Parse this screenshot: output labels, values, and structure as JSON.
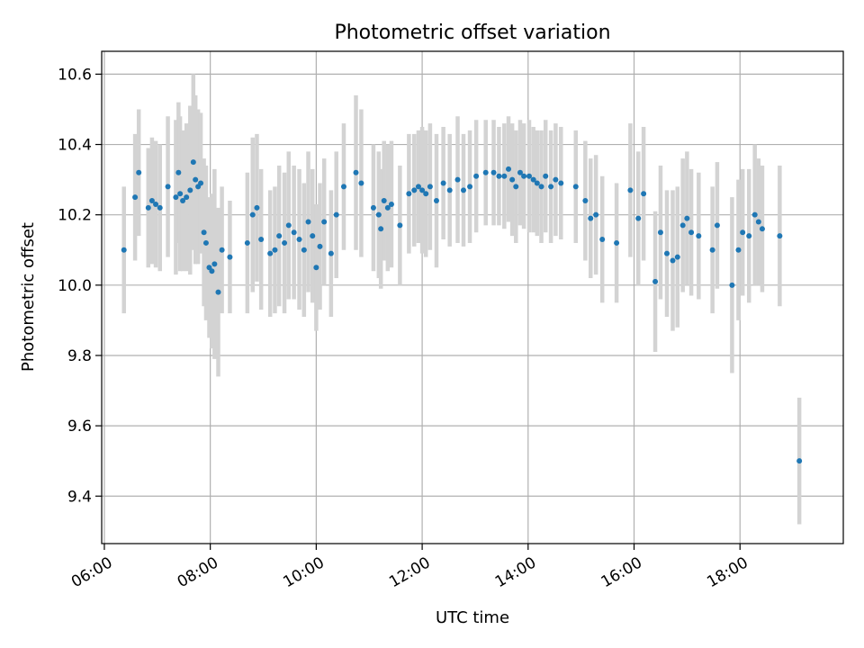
{
  "chart_data": {
    "type": "scatter",
    "title": "Photometric offset variation",
    "xlabel": "UTC time",
    "ylabel": "Photometric offset",
    "xlim": [
      5.95,
      19.95
    ],
    "ylim": [
      9.265,
      10.665
    ],
    "xticks": [
      6,
      8,
      10,
      12,
      14,
      16,
      18
    ],
    "xtick_labels": [
      "06:00",
      "08:00",
      "10:00",
      "12:00",
      "14:00",
      "16:00",
      "18:00"
    ],
    "yticks": [
      9.4,
      9.6,
      9.8,
      10.0,
      10.2,
      10.4,
      10.6
    ],
    "ytick_labels": [
      "9.4",
      "9.6",
      "9.8",
      "10.0",
      "10.2",
      "10.4",
      "10.6"
    ],
    "grid": true,
    "colors": {
      "points": "#1f77b4",
      "errorbars": "#d3d3d3",
      "grid": "#b0b0b0"
    },
    "series": [
      {
        "x": [
          6.37,
          6.58,
          6.65,
          6.83,
          6.9,
          6.97,
          7.05,
          7.2,
          7.35,
          7.4,
          7.43,
          7.48,
          7.55,
          7.62,
          7.68,
          7.72,
          7.77,
          7.82,
          7.88,
          7.92,
          7.98,
          8.03,
          8.08,
          8.15,
          8.22,
          8.37,
          8.7,
          8.8,
          8.88,
          8.96,
          9.13,
          9.22,
          9.3,
          9.4,
          9.48,
          9.58,
          9.68,
          9.77,
          9.85,
          9.93,
          10.0,
          10.07,
          10.15,
          10.28,
          10.38,
          10.52,
          10.75,
          10.85,
          11.08,
          11.18,
          11.22,
          11.28,
          11.35,
          11.42,
          11.58,
          11.75,
          11.85,
          11.93,
          12.0,
          12.07,
          12.15,
          12.27,
          12.4,
          12.52,
          12.67,
          12.78,
          12.9,
          13.02,
          13.2,
          13.35,
          13.45,
          13.55,
          13.63,
          13.7,
          13.77,
          13.85,
          13.92,
          14.02,
          14.1,
          14.17,
          14.25,
          14.33,
          14.43,
          14.52,
          14.62,
          14.9,
          15.08,
          15.18,
          15.28,
          15.4,
          15.67,
          15.93,
          16.08,
          16.18,
          16.4,
          16.5,
          16.62,
          16.73,
          16.82,
          16.92,
          17.0,
          17.08,
          17.22,
          17.48,
          17.57,
          17.85,
          17.97,
          18.05,
          18.17,
          18.28,
          18.35,
          18.42,
          18.75,
          19.12
        ],
        "y": [
          10.1,
          10.25,
          10.32,
          10.22,
          10.24,
          10.23,
          10.22,
          10.28,
          10.25,
          10.32,
          10.26,
          10.24,
          10.25,
          10.27,
          10.35,
          10.3,
          10.28,
          10.29,
          10.15,
          10.12,
          10.05,
          10.04,
          10.06,
          9.98,
          10.1,
          10.08,
          10.12,
          10.2,
          10.22,
          10.13,
          10.09,
          10.1,
          10.14,
          10.12,
          10.17,
          10.15,
          10.13,
          10.1,
          10.18,
          10.14,
          10.05,
          10.11,
          10.18,
          10.09,
          10.2,
          10.28,
          10.32,
          10.29,
          10.22,
          10.2,
          10.16,
          10.24,
          10.22,
          10.23,
          10.17,
          10.26,
          10.27,
          10.28,
          10.27,
          10.26,
          10.28,
          10.24,
          10.29,
          10.27,
          10.3,
          10.27,
          10.28,
          10.31,
          10.32,
          10.32,
          10.31,
          10.31,
          10.33,
          10.3,
          10.28,
          10.32,
          10.31,
          10.31,
          10.3,
          10.29,
          10.28,
          10.31,
          10.28,
          10.3,
          10.29,
          10.28,
          10.24,
          10.19,
          10.2,
          10.13,
          10.12,
          10.27,
          10.19,
          10.26,
          10.01,
          10.15,
          10.09,
          10.07,
          10.08,
          10.17,
          10.19,
          10.15,
          10.14,
          10.1,
          10.17,
          10.0,
          10.1,
          10.15,
          10.14,
          10.2,
          10.18,
          10.16,
          10.14,
          9.5
        ],
        "yerr": [
          0.18,
          0.18,
          0.18,
          0.17,
          0.18,
          0.18,
          0.18,
          0.2,
          0.22,
          0.2,
          0.22,
          0.2,
          0.21,
          0.24,
          0.25,
          0.24,
          0.22,
          0.2,
          0.21,
          0.22,
          0.2,
          0.22,
          0.27,
          0.24,
          0.18,
          0.16,
          0.2,
          0.22,
          0.21,
          0.2,
          0.18,
          0.18,
          0.2,
          0.2,
          0.21,
          0.19,
          0.2,
          0.19,
          0.2,
          0.19,
          0.18,
          0.18,
          0.18,
          0.18,
          0.18,
          0.18,
          0.22,
          0.21,
          0.18,
          0.18,
          0.17,
          0.17,
          0.18,
          0.18,
          0.17,
          0.17,
          0.16,
          0.16,
          0.18,
          0.18,
          0.18,
          0.19,
          0.16,
          0.16,
          0.18,
          0.16,
          0.16,
          0.16,
          0.15,
          0.15,
          0.14,
          0.15,
          0.15,
          0.16,
          0.16,
          0.15,
          0.15,
          0.16,
          0.15,
          0.15,
          0.16,
          0.16,
          0.16,
          0.16,
          0.16,
          0.16,
          0.17,
          0.17,
          0.17,
          0.18,
          0.17,
          0.19,
          0.19,
          0.19,
          0.2,
          0.19,
          0.18,
          0.2,
          0.2,
          0.19,
          0.19,
          0.18,
          0.18,
          0.18,
          0.18,
          0.25,
          0.2,
          0.18,
          0.19,
          0.2,
          0.18,
          0.18,
          0.2,
          0.18
        ]
      }
    ]
  }
}
